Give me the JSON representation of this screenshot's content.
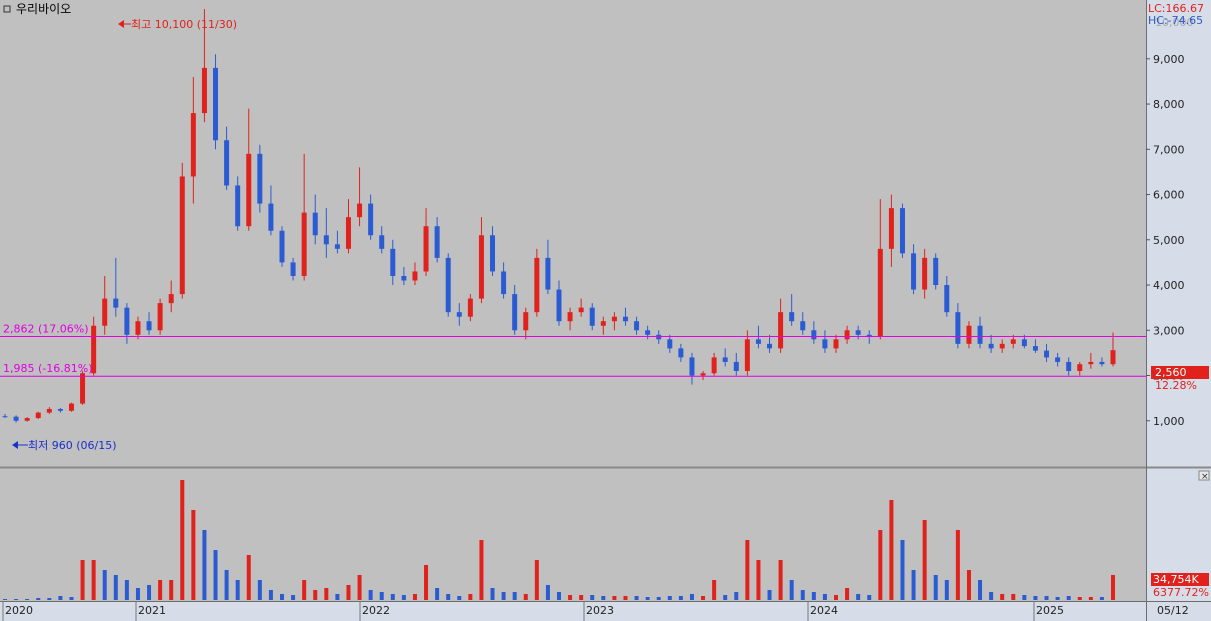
{
  "window": {
    "title": "우리바이오",
    "date_label": "05/12"
  },
  "chart_data": {
    "type": "candlestick",
    "x_ticks": [
      "2020",
      "2021",
      "2022",
      "2023",
      "2024",
      "2025"
    ],
    "y_ticks": [
      "1,000",
      "2,000",
      "3,000",
      "4,000",
      "5,000",
      "6,000",
      "7,000",
      "8,000",
      "9,000"
    ],
    "ylim": [
      0,
      10300
    ],
    "grid": false,
    "info": {
      "lc": "LC:166.67",
      "hc": "HC:-74.65",
      "top_partial": "10,000"
    },
    "current": {
      "price": 2560,
      "price_label": "2,560",
      "change_label": "12.28%"
    },
    "annotations": {
      "high": {
        "value": 10100,
        "label": "최고 10,100 (11/30)"
      },
      "low": {
        "value": 960,
        "label": "최저 960 (06/15)"
      }
    },
    "hlines": [
      {
        "value": 2862,
        "label": "2,862 (17.06%)"
      },
      {
        "value": 1985,
        "label": "1,985 (-16.81%)"
      }
    ],
    "volume": {
      "label": "34,754K",
      "sub_label": "6377.72%"
    },
    "candles": [
      [
        1100,
        1150,
        1060,
        1090
      ],
      [
        1090,
        1120,
        960,
        1000
      ],
      [
        1000,
        1080,
        980,
        1060
      ],
      [
        1060,
        1200,
        1040,
        1180
      ],
      [
        1180,
        1300,
        1150,
        1260
      ],
      [
        1260,
        1280,
        1180,
        1220
      ],
      [
        1220,
        1400,
        1200,
        1380
      ],
      [
        1380,
        2100,
        1350,
        2050
      ],
      [
        2050,
        3300,
        2000,
        3100
      ],
      [
        3100,
        4200,
        2900,
        3700
      ],
      [
        3700,
        4600,
        3300,
        3500
      ],
      [
        3500,
        3600,
        2700,
        2900
      ],
      [
        2900,
        3300,
        2800,
        3200
      ],
      [
        3200,
        3400,
        2900,
        3000
      ],
      [
        3000,
        3700,
        2900,
        3600
      ],
      [
        3600,
        4100,
        3400,
        3800
      ],
      [
        3800,
        6700,
        3700,
        6400
      ],
      [
        6400,
        8600,
        5800,
        7800
      ],
      [
        7800,
        10100,
        7600,
        8800
      ],
      [
        8800,
        9100,
        7000,
        7200
      ],
      [
        7200,
        7500,
        6100,
        6200
      ],
      [
        6200,
        6400,
        5200,
        5300
      ],
      [
        5300,
        7900,
        5200,
        6900
      ],
      [
        6900,
        7100,
        5600,
        5800
      ],
      [
        5800,
        6200,
        5100,
        5200
      ],
      [
        5200,
        5300,
        4400,
        4500
      ],
      [
        4500,
        4600,
        4100,
        4200
      ],
      [
        4200,
        6900,
        4100,
        5600
      ],
      [
        5600,
        6000,
        4900,
        5100
      ],
      [
        5100,
        5700,
        4600,
        4900
      ],
      [
        4900,
        5200,
        4700,
        4800
      ],
      [
        4800,
        5900,
        4700,
        5500
      ],
      [
        5500,
        6600,
        5300,
        5800
      ],
      [
        5800,
        6000,
        5000,
        5100
      ],
      [
        5100,
        5300,
        4700,
        4800
      ],
      [
        4800,
        5000,
        4000,
        4200
      ],
      [
        4200,
        4400,
        4000,
        4100
      ],
      [
        4100,
        4500,
        4000,
        4300
      ],
      [
        4300,
        5700,
        4200,
        5300
      ],
      [
        5300,
        5500,
        4500,
        4600
      ],
      [
        4600,
        4700,
        3300,
        3400
      ],
      [
        3400,
        3600,
        3100,
        3300
      ],
      [
        3300,
        3800,
        3200,
        3700
      ],
      [
        3700,
        5500,
        3600,
        5100
      ],
      [
        5100,
        5300,
        4200,
        4300
      ],
      [
        4300,
        4500,
        3700,
        3800
      ],
      [
        3800,
        4000,
        2900,
        3000
      ],
      [
        3000,
        3500,
        2800,
        3400
      ],
      [
        3400,
        4800,
        3300,
        4600
      ],
      [
        4600,
        5000,
        3800,
        3900
      ],
      [
        3900,
        4100,
        3100,
        3200
      ],
      [
        3200,
        3500,
        3000,
        3400
      ],
      [
        3400,
        3700,
        3300,
        3500
      ],
      [
        3500,
        3600,
        3000,
        3100
      ],
      [
        3100,
        3300,
        2900,
        3200
      ],
      [
        3200,
        3400,
        3000,
        3300
      ],
      [
        3300,
        3500,
        3100,
        3200
      ],
      [
        3200,
        3300,
        2900,
        3000
      ],
      [
        3000,
        3100,
        2800,
        2900
      ],
      [
        2900,
        3000,
        2700,
        2800
      ],
      [
        2800,
        2900,
        2500,
        2600
      ],
      [
        2600,
        2700,
        2300,
        2400
      ],
      [
        2400,
        2500,
        1800,
        2000
      ],
      [
        2000,
        2100,
        1900,
        2050
      ],
      [
        2050,
        2500,
        2000,
        2400
      ],
      [
        2400,
        2600,
        2200,
        2300
      ],
      [
        2300,
        2500,
        2000,
        2100
      ],
      [
        2100,
        3000,
        2000,
        2800
      ],
      [
        2800,
        3100,
        2600,
        2700
      ],
      [
        2700,
        2900,
        2500,
        2600
      ],
      [
        2600,
        3700,
        2500,
        3400
      ],
      [
        3400,
        3800,
        3100,
        3200
      ],
      [
        3200,
        3400,
        2900,
        3000
      ],
      [
        3000,
        3200,
        2700,
        2800
      ],
      [
        2800,
        3000,
        2500,
        2600
      ],
      [
        2600,
        2900,
        2500,
        2800
      ],
      [
        2800,
        3100,
        2700,
        3000
      ],
      [
        3000,
        3100,
        2800,
        2900
      ],
      [
        2900,
        3000,
        2700,
        2850
      ],
      [
        2850,
        5900,
        2800,
        4800
      ],
      [
        4800,
        6000,
        4400,
        5700
      ],
      [
        5700,
        5800,
        4600,
        4700
      ],
      [
        4700,
        4900,
        3800,
        3900
      ],
      [
        3900,
        4800,
        3700,
        4600
      ],
      [
        4600,
        4700,
        3900,
        4000
      ],
      [
        4000,
        4200,
        3300,
        3400
      ],
      [
        3400,
        3600,
        2600,
        2700
      ],
      [
        2700,
        3200,
        2600,
        3100
      ],
      [
        3100,
        3300,
        2600,
        2700
      ],
      [
        2700,
        2900,
        2500,
        2600
      ],
      [
        2600,
        2800,
        2500,
        2700
      ],
      [
        2700,
        2900,
        2600,
        2800
      ],
      [
        2800,
        2900,
        2600,
        2650
      ],
      [
        2650,
        2800,
        2500,
        2550
      ],
      [
        2550,
        2700,
        2300,
        2400
      ],
      [
        2400,
        2500,
        2200,
        2300
      ],
      [
        2300,
        2400,
        2000,
        2100
      ],
      [
        2100,
        2300,
        2000,
        2250
      ],
      [
        2250,
        2500,
        2150,
        2300
      ],
      [
        2300,
        2400,
        2200,
        2250
      ],
      [
        2250,
        2950,
        2200,
        2560
      ]
    ],
    "volumes": [
      [
        1,
        0
      ],
      [
        1,
        0
      ],
      [
        1,
        0
      ],
      [
        2,
        0
      ],
      [
        2,
        0
      ],
      [
        4,
        0
      ],
      [
        3,
        0
      ],
      [
        40,
        1
      ],
      [
        40,
        1
      ],
      [
        30,
        0
      ],
      [
        25,
        0
      ],
      [
        20,
        0
      ],
      [
        12,
        0
      ],
      [
        15,
        0
      ],
      [
        20,
        1
      ],
      [
        20,
        1
      ],
      [
        120,
        1
      ],
      [
        90,
        1
      ],
      [
        70,
        0
      ],
      [
        50,
        0
      ],
      [
        30,
        0
      ],
      [
        20,
        0
      ],
      [
        45,
        1
      ],
      [
        20,
        0
      ],
      [
        10,
        0
      ],
      [
        6,
        0
      ],
      [
        5,
        0
      ],
      [
        20,
        1
      ],
      [
        10,
        1
      ],
      [
        12,
        1
      ],
      [
        6,
        0
      ],
      [
        15,
        1
      ],
      [
        25,
        1
      ],
      [
        10,
        0
      ],
      [
        8,
        0
      ],
      [
        6,
        0
      ],
      [
        5,
        0
      ],
      [
        6,
        1
      ],
      [
        35,
        1
      ],
      [
        12,
        0
      ],
      [
        6,
        0
      ],
      [
        4,
        0
      ],
      [
        6,
        1
      ],
      [
        60,
        1
      ],
      [
        12,
        0
      ],
      [
        8,
        0
      ],
      [
        8,
        0
      ],
      [
        6,
        1
      ],
      [
        40,
        1
      ],
      [
        15,
        0
      ],
      [
        8,
        0
      ],
      [
        5,
        1
      ],
      [
        5,
        1
      ],
      [
        5,
        0
      ],
      [
        4,
        0
      ],
      [
        4,
        1
      ],
      [
        4,
        1
      ],
      [
        4,
        0
      ],
      [
        3,
        0
      ],
      [
        3,
        0
      ],
      [
        4,
        0
      ],
      [
        4,
        0
      ],
      [
        6,
        0
      ],
      [
        4,
        1
      ],
      [
        20,
        1
      ],
      [
        5,
        0
      ],
      [
        8,
        0
      ],
      [
        60,
        1
      ],
      [
        40,
        1
      ],
      [
        10,
        0
      ],
      [
        40,
        1
      ],
      [
        20,
        0
      ],
      [
        10,
        0
      ],
      [
        8,
        0
      ],
      [
        6,
        0
      ],
      [
        5,
        1
      ],
      [
        12,
        1
      ],
      [
        6,
        0
      ],
      [
        5,
        0
      ],
      [
        70,
        1
      ],
      [
        100,
        1
      ],
      [
        60,
        0
      ],
      [
        30,
        0
      ],
      [
        80,
        1
      ],
      [
        25,
        0
      ],
      [
        20,
        0
      ],
      [
        70,
        1
      ],
      [
        30,
        1
      ],
      [
        20,
        0
      ],
      [
        8,
        0
      ],
      [
        6,
        1
      ],
      [
        6,
        1
      ],
      [
        5,
        0
      ],
      [
        4,
        0
      ],
      [
        4,
        0
      ],
      [
        3,
        0
      ],
      [
        4,
        0
      ],
      [
        3,
        1
      ],
      [
        3,
        1
      ],
      [
        3,
        0
      ],
      [
        25,
        1
      ]
    ]
  },
  "colors": {
    "background": "#c0c0c0",
    "up": "#e0211c",
    "down": "#2a5bd3",
    "hline": "#e000e0",
    "axis_panel": "#d7dde8",
    "info_lc": "#e0211c",
    "info_hc": "#2a5bd3"
  }
}
